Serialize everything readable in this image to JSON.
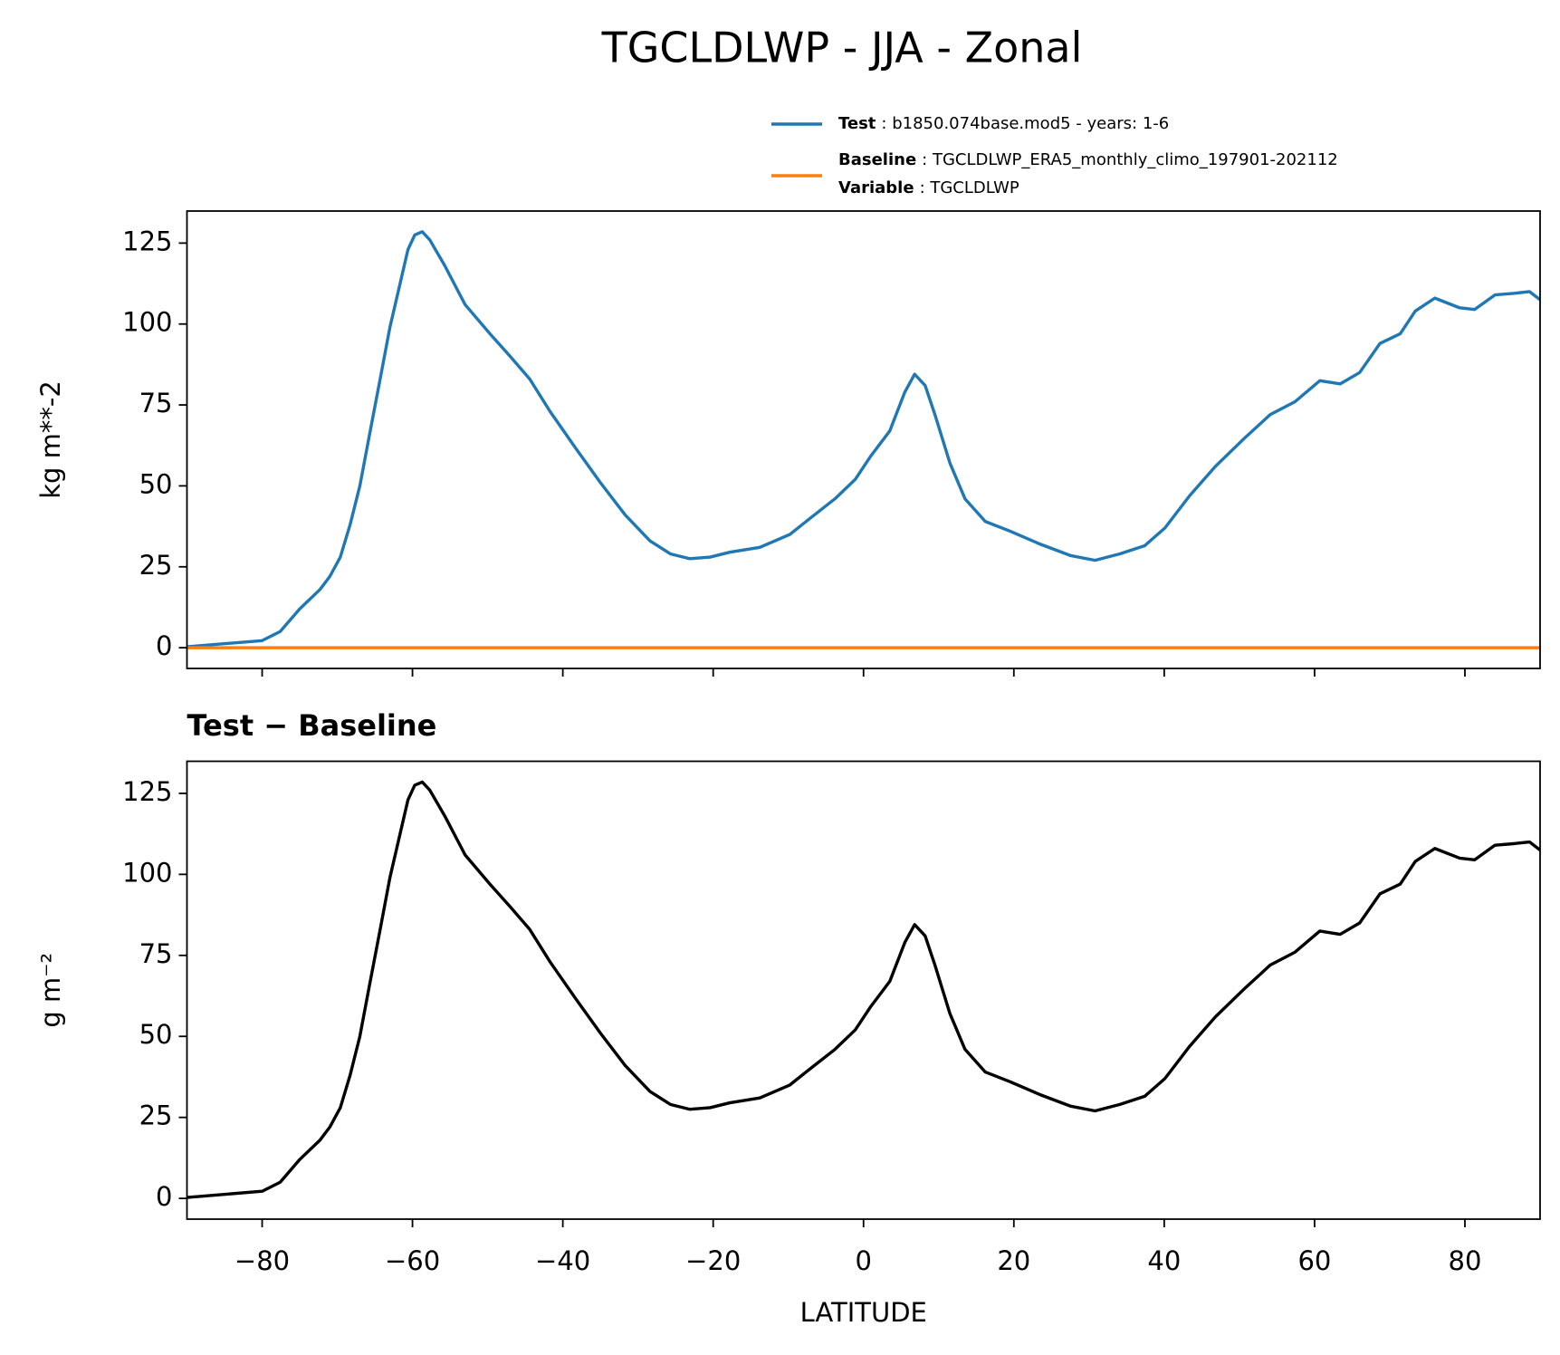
{
  "title": "TGCLDLWP - JJA - Zonal",
  "chart_data": [
    {
      "type": "line",
      "ylabel": "kg m**-2",
      "x": [
        -90,
        -80,
        -77.6,
        -75,
        -72.3,
        -71,
        -69.6,
        -68.3,
        -67,
        -65.7,
        -64.3,
        -63,
        -61.7,
        -60.6,
        -59.7,
        -58.7,
        -57.7,
        -55.7,
        -53,
        -49.7,
        -47,
        -44.4,
        -41.7,
        -38.4,
        -35,
        -31.7,
        -28.4,
        -25.7,
        -23.1,
        -20.4,
        -17.8,
        -13.8,
        -9.8,
        -7.1,
        -3.8,
        -1.1,
        0.9,
        3.5,
        5.5,
        6.8,
        8.2,
        9.5,
        11.5,
        13.5,
        16.2,
        19.5,
        23.5,
        27.5,
        30.8,
        34.1,
        37.4,
        40.1,
        43.4,
        46.8,
        50.8,
        54.1,
        57.4,
        60.7,
        63.4,
        66,
        68.7,
        71.4,
        73.4,
        76,
        79.3,
        81.3,
        84,
        86.6,
        88.6,
        90
      ],
      "series": [
        {
          "name": "Test",
          "label": ": b1850.074base.mod5 - years: 1-6",
          "color": "#1f77b4",
          "values": [
            0.3,
            2.2,
            5,
            12,
            18,
            22,
            28,
            38,
            50,
            66,
            83,
            99,
            112,
            123,
            127.5,
            128.5,
            126,
            118,
            106,
            97,
            90,
            83,
            73,
            62,
            51,
            41,
            33,
            29,
            27.5,
            28,
            29.5,
            31,
            35,
            40,
            46,
            52,
            59,
            67,
            79,
            84.5,
            81,
            72,
            57,
            46,
            39,
            36,
            32,
            28.5,
            27,
            29,
            31.5,
            37,
            47,
            56,
            65,
            72,
            76,
            82.5,
            81.5,
            85,
            94,
            97,
            104,
            108,
            105,
            104.5,
            109,
            109.5,
            110,
            107.5
          ]
        },
        {
          "name": "Baseline",
          "label": ": TGCLDLWP_ERA5_monthly_climo_197901-202112",
          "color": "#ff7f0e",
          "values": [
            0,
            0,
            0,
            0,
            0,
            0,
            0,
            0,
            0,
            0,
            0,
            0,
            0,
            0,
            0,
            0,
            0,
            0,
            0,
            0,
            0,
            0,
            0,
            0,
            0,
            0,
            0,
            0,
            0,
            0,
            0,
            0,
            0,
            0,
            0,
            0,
            0,
            0,
            0,
            0,
            0,
            0,
            0,
            0,
            0,
            0,
            0,
            0,
            0,
            0,
            0,
            0,
            0,
            0,
            0,
            0,
            0,
            0,
            0,
            0,
            0,
            0,
            0,
            0,
            0,
            0,
            0,
            0,
            0,
            0
          ]
        }
      ],
      "variable": {
        "name": "Variable",
        "label": ": TGCLDLWP"
      },
      "xlim": [
        -90,
        90
      ],
      "ylim": [
        -6.4,
        134.9
      ],
      "xticks": [
        -80,
        -60,
        -40,
        -20,
        0,
        20,
        40,
        60,
        80
      ],
      "yticks": [
        0,
        25,
        50,
        75,
        100,
        125
      ]
    },
    {
      "type": "line",
      "title": "Test − Baseline",
      "ylabel": "g m⁻²",
      "xlabel": "LATITUDE",
      "x": [
        -90,
        -80,
        -77.6,
        -75,
        -72.3,
        -71,
        -69.6,
        -68.3,
        -67,
        -65.7,
        -64.3,
        -63,
        -61.7,
        -60.6,
        -59.7,
        -58.7,
        -57.7,
        -55.7,
        -53,
        -49.7,
        -47,
        -44.4,
        -41.7,
        -38.4,
        -35,
        -31.7,
        -28.4,
        -25.7,
        -23.1,
        -20.4,
        -17.8,
        -13.8,
        -9.8,
        -7.1,
        -3.8,
        -1.1,
        0.9,
        3.5,
        5.5,
        6.8,
        8.2,
        9.5,
        11.5,
        13.5,
        16.2,
        19.5,
        23.5,
        27.5,
        30.8,
        34.1,
        37.4,
        40.1,
        43.4,
        46.8,
        50.8,
        54.1,
        57.4,
        60.7,
        63.4,
        66,
        68.7,
        71.4,
        73.4,
        76,
        79.3,
        81.3,
        84,
        86.6,
        88.6,
        90
      ],
      "color": "#000000",
      "values": [
        0.3,
        2.2,
        5,
        12,
        18,
        22,
        28,
        38,
        50,
        66,
        83,
        99,
        112,
        123,
        127.5,
        128.5,
        126,
        118,
        106,
        97,
        90,
        83,
        73,
        62,
        51,
        41,
        33,
        29,
        27.5,
        28,
        29.5,
        31,
        35,
        40,
        46,
        52,
        59,
        67,
        79,
        84.5,
        81,
        72,
        57,
        46,
        39,
        36,
        32,
        28.5,
        27,
        29,
        31.5,
        37,
        47,
        56,
        65,
        72,
        76,
        82.5,
        81.5,
        85,
        94,
        97,
        104,
        108,
        105,
        104.5,
        109,
        109.5,
        110,
        107.5
      ],
      "xlim": [
        -90,
        90
      ],
      "ylim": [
        -6.4,
        134.9
      ],
      "xticks": [
        {
          "value": -80,
          "label": "−80"
        },
        {
          "value": -60,
          "label": "−60"
        },
        {
          "value": -40,
          "label": "−40"
        },
        {
          "value": -20,
          "label": "−20"
        },
        0,
        20,
        40,
        60,
        80
      ],
      "yticks": [
        0,
        25,
        50,
        75,
        100,
        125
      ]
    }
  ]
}
